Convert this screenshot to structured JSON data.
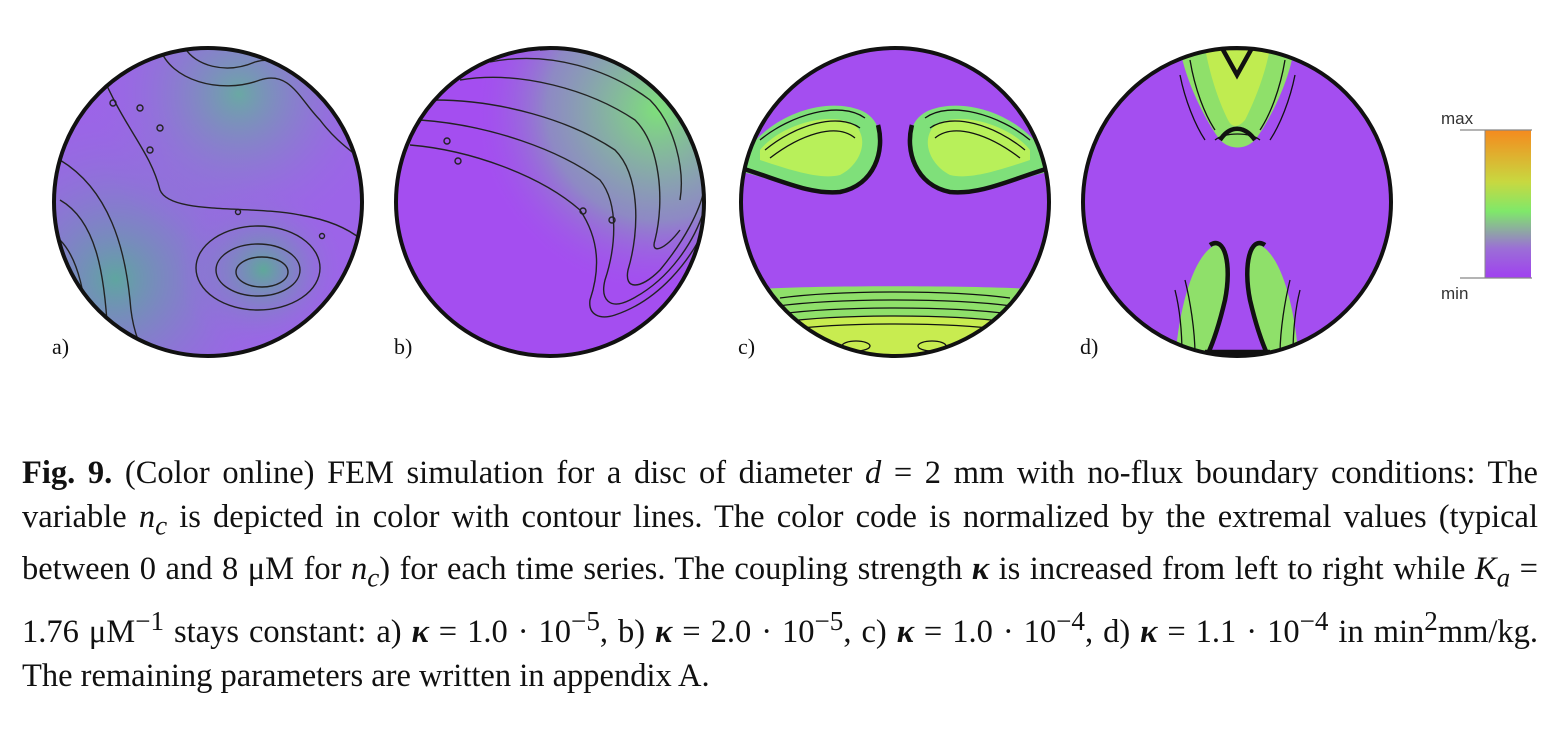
{
  "figure": {
    "panels": [
      {
        "label": "a)",
        "kappa": "1.0 · 10^-5"
      },
      {
        "label": "b)",
        "kappa": "2.0 · 10^-5"
      },
      {
        "label": "c)",
        "kappa": "1.0 · 10^-4"
      },
      {
        "label": "d)",
        "kappa": "1.1 · 10^-4"
      }
    ],
    "colorbar": {
      "max_label": "max",
      "min_label": "min",
      "colors": [
        "#f58a1e",
        "#c8d840",
        "#7fe86a",
        "#9b6fd6",
        "#a040f0"
      ]
    },
    "colors": {
      "min": "#a652f0",
      "mid": "#78c8a0",
      "high": "#a8f060",
      "max": "#e8e830"
    }
  },
  "caption": {
    "label": "Fig. 9.",
    "part1": " (Color online) FEM simulation for a disc of diameter ",
    "d_symbol": "d",
    "part2": " = 2 mm with no-flux boundary conditions: The variable ",
    "nc1_base": "n",
    "nc1_sub": "c",
    "part3": " is depicted in color with contour lines. The color code is normalized by the extremal values (typical between 0 and 8 μM for ",
    "nc2_base": "n",
    "nc2_sub": "c",
    "part4": ") for each time series. The coupling strength ",
    "kappa_symbol": "κ",
    "part5": " is increased from left to right while ",
    "ka_base": "K",
    "ka_sub": "a",
    "part6": " = 1.76 μM",
    "ka_exp": "−1",
    "part7": " stays constant: a) ",
    "k_a": "κ",
    "val_a": " = 1.0 · 10",
    "exp_a": "−5",
    "part8": ", b) ",
    "k_b": "κ",
    "val_b": " = 2.0 · 10",
    "exp_b": "−5",
    "part9": ", c) ",
    "k_c": "κ",
    "val_c": " = 1.0 · 10",
    "exp_c": "−4",
    "part10": ", d) ",
    "k_d": "κ",
    "val_d": " = 1.1 · 10",
    "exp_d": "−4",
    "part11": " in min",
    "min_exp": "2",
    "part12": "mm/kg. The remaining parameters are written in appendix A."
  }
}
